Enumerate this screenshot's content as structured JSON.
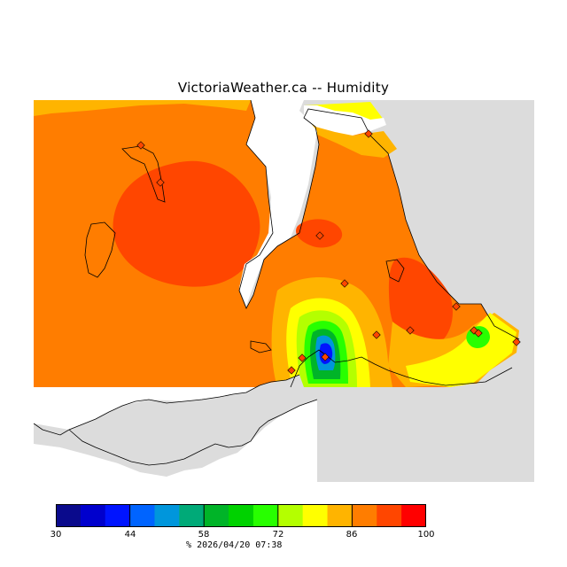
{
  "title": "VictoriaWeather.ca -- Humidity",
  "legend": {
    "unit": "%",
    "ticks": [
      "30",
      "44",
      "58",
      "72",
      "86",
      "100"
    ],
    "colors": [
      "#0a0a8c",
      "#0000cd",
      "#0014ff",
      "#0064ff",
      "#0096dc",
      "#00aa78",
      "#00b428",
      "#00d200",
      "#28ff00",
      "#b4ff00",
      "#ffff00",
      "#ffb400",
      "#ff7d00",
      "#ff4600",
      "#ff0000"
    ]
  },
  "timestamp": "2026/04/20 07:38",
  "map": {
    "background_land_color": "#dcdcdc",
    "water_color": "#ffffff",
    "stations": 14
  }
}
